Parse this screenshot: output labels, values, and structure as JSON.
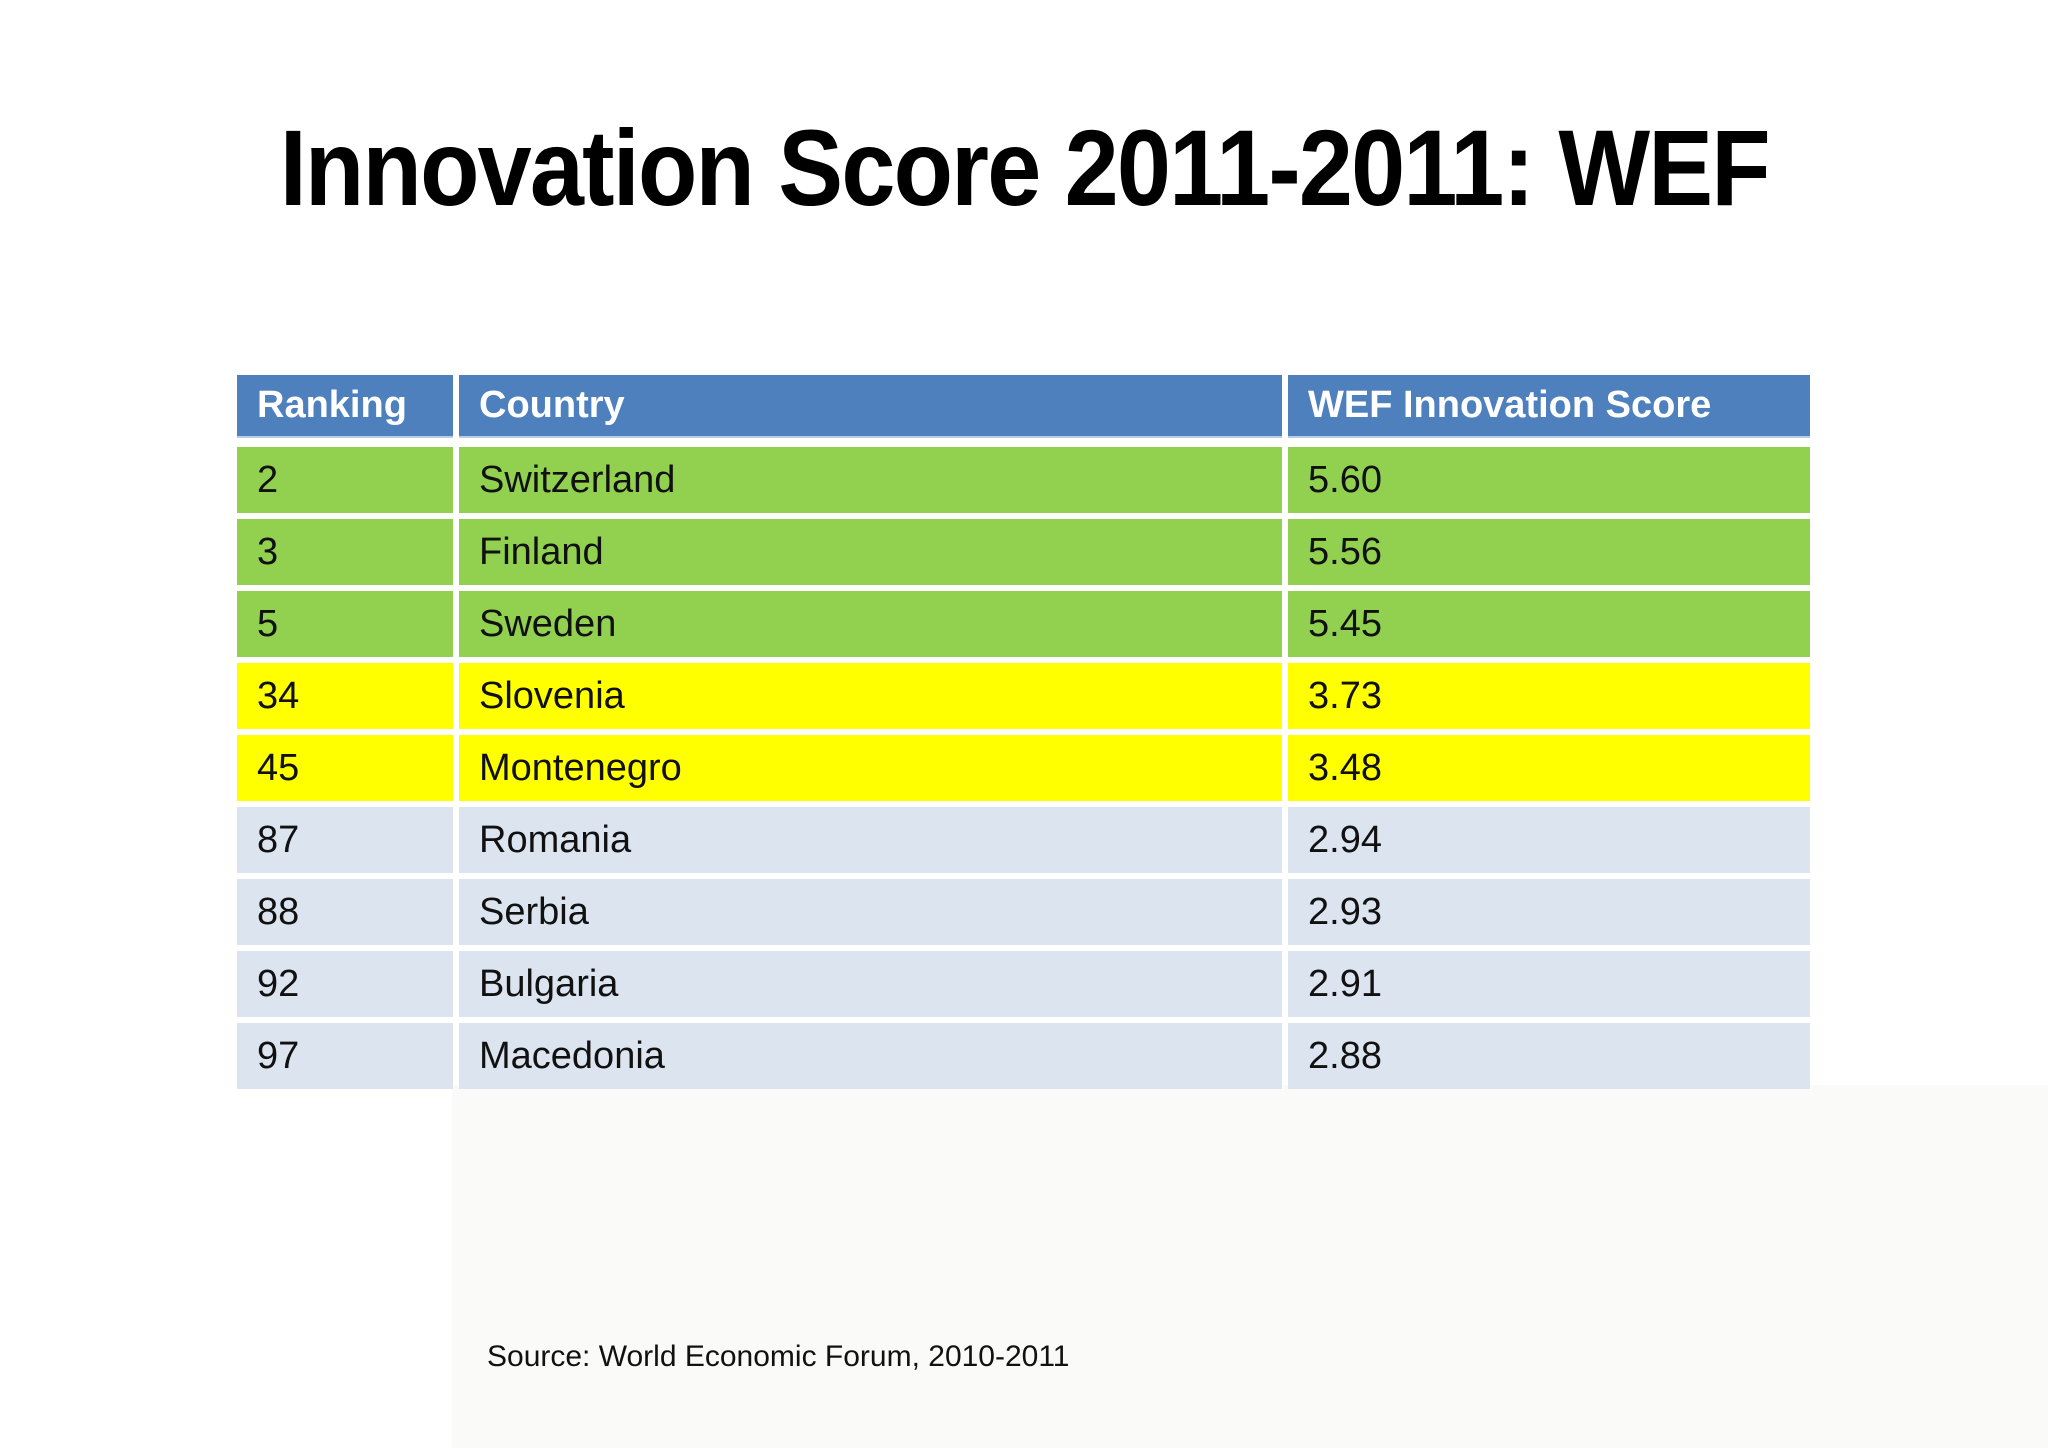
{
  "slide": {
    "title": "Innovation Score 2011-2011: WEF",
    "source": "Source: World Economic Forum, 2010-2011"
  },
  "table": {
    "headers": {
      "ranking": "Ranking",
      "country": "Country",
      "score": "WEF Innovation Score"
    },
    "rows": [
      {
        "ranking": "2",
        "country": "Switzerland",
        "score": "5.60",
        "group": "green"
      },
      {
        "ranking": "3",
        "country": "Finland",
        "score": "5.56",
        "group": "green"
      },
      {
        "ranking": "5",
        "country": "Sweden",
        "score": "5.45",
        "group": "green"
      },
      {
        "ranking": "34",
        "country": "Slovenia",
        "score": "3.73",
        "group": "yellow"
      },
      {
        "ranking": "45",
        "country": "Montenegro",
        "score": "3.48",
        "group": "yellow"
      },
      {
        "ranking": "87",
        "country": "Romania",
        "score": "2.94",
        "group": "blue"
      },
      {
        "ranking": "88",
        "country": "Serbia",
        "score": "2.93",
        "group": "blue"
      },
      {
        "ranking": "92",
        "country": "Bulgaria",
        "score": "2.91",
        "group": "blue"
      },
      {
        "ranking": "97",
        "country": "Macedonia",
        "score": "2.88",
        "group": "blue"
      }
    ]
  },
  "colors": {
    "header_bg": "#4d80bd",
    "header_text": "#ffffff",
    "top_group_bg": "#92d050",
    "mid_group_bg": "#ffff00",
    "low_group_bg": "#dce4ef",
    "body_text": "#111111",
    "title_text": "#000000"
  }
}
